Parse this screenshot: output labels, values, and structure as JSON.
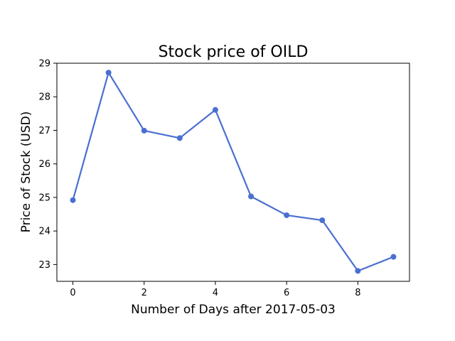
{
  "chart_data": {
    "type": "line",
    "title": "Stock price of OILD",
    "xlabel": "Number of Days after 2017-05-03",
    "ylabel": "Price of Stock (USD)",
    "x": [
      0,
      1,
      2,
      3,
      4,
      5,
      6,
      7,
      8,
      9
    ],
    "series": [
      {
        "values": [
          24.92,
          28.72,
          26.99,
          26.77,
          27.61,
          25.03,
          24.47,
          24.32,
          22.81,
          23.23
        ],
        "color": "#4a6fd2",
        "marker": "circle"
      }
    ],
    "xlim": [
      -0.45,
      9.45
    ],
    "ylim": [
      22.5,
      29.0
    ],
    "xticks": [
      0,
      2,
      4,
      6,
      8
    ],
    "yticks": [
      23,
      24,
      25,
      26,
      27,
      28,
      29
    ],
    "grid": false,
    "legend": "none"
  }
}
